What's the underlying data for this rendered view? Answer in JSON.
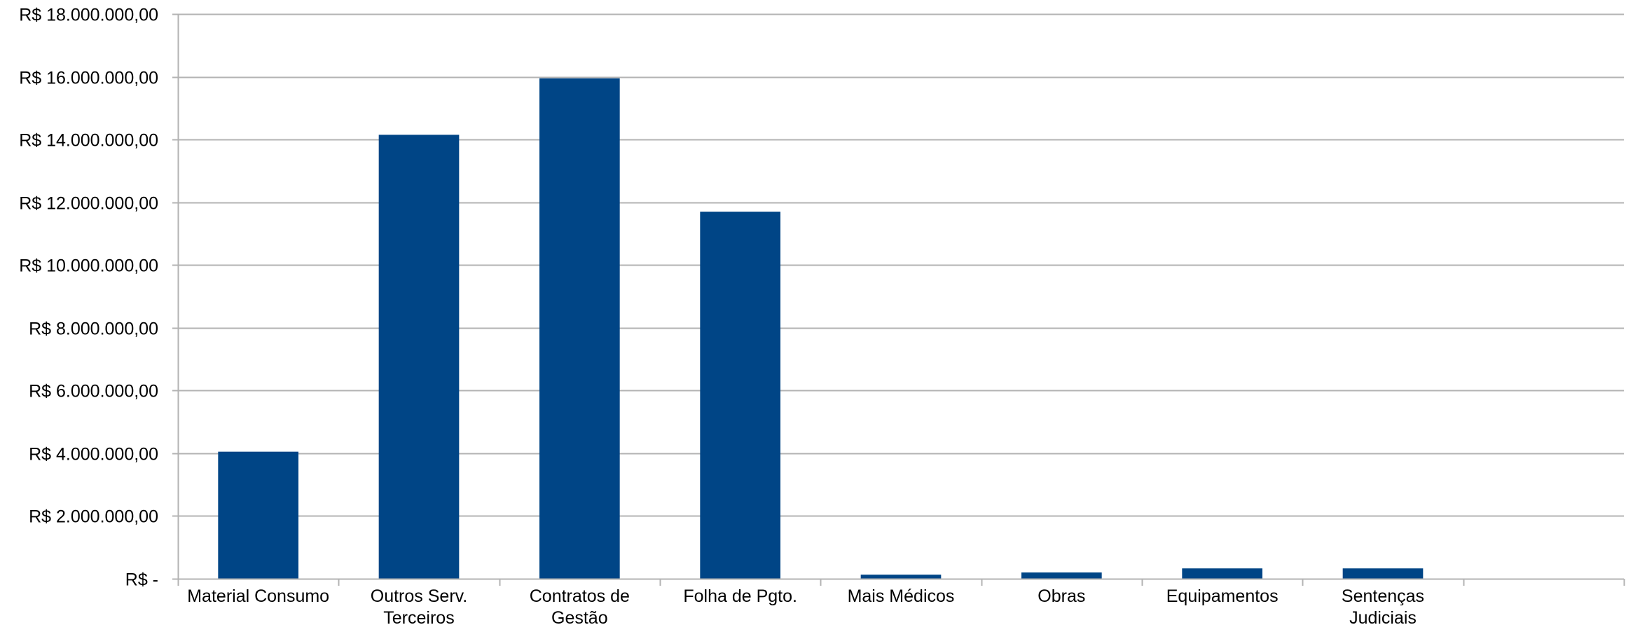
{
  "chart_data": {
    "type": "bar",
    "categories": [
      [
        "Material Consumo"
      ],
      [
        "Outros Serv.",
        "Terceiros"
      ],
      [
        "Contratos de",
        "Gestão"
      ],
      [
        "Folha de Pgto."
      ],
      [
        "Mais Médicos"
      ],
      [
        "Obras"
      ],
      [
        "Equipamentos"
      ],
      [
        "Sentenças",
        "Judiciais"
      ]
    ],
    "values": [
      4050000,
      14150000,
      15950000,
      11700000,
      130000,
      200000,
      330000,
      330000
    ],
    "ylim": [
      0,
      18000000
    ],
    "yticks": [
      0,
      2000000,
      4000000,
      6000000,
      8000000,
      10000000,
      12000000,
      14000000,
      16000000,
      18000000
    ],
    "ytick_labels": [
      "R$ -",
      "R$ 2.000.000,00",
      "R$ 4.000.000,00",
      "R$ 6.000.000,00",
      "R$ 8.000.000,00",
      "R$ 10.000.000,00",
      "R$ 12.000.000,00",
      "R$ 14.000.000,00",
      "R$ 16.000.000,00",
      "R$ 18.000.000,00"
    ],
    "slot_count": 9,
    "grid": true,
    "legend": "none",
    "bar_color": "#004586",
    "grid_color": "#b3b3b3"
  }
}
